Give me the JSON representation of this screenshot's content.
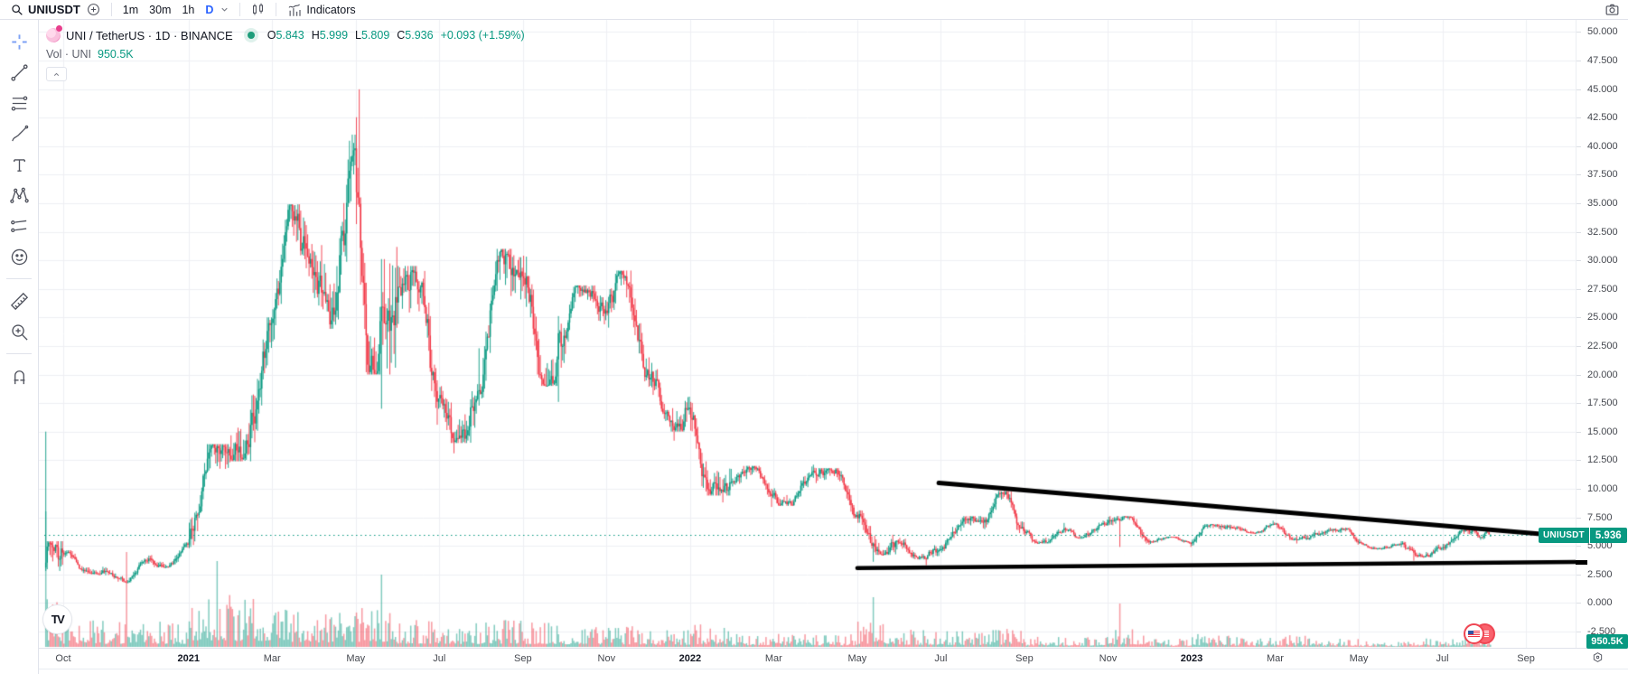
{
  "topbar": {
    "symbol": "UNIUSDT",
    "intervals": [
      "1m",
      "30m",
      "1h",
      "D"
    ],
    "active_interval": "D",
    "indicators_label": "Indicators"
  },
  "left_toolbar": {
    "tools": [
      "crosshair",
      "trend-line",
      "fib-retracement",
      "brush",
      "text",
      "xabcd-pattern",
      "projection",
      "emoji",
      "|",
      "ruler",
      "zoom-in",
      "|",
      "magnet"
    ]
  },
  "legend": {
    "title": "UNI / TetherUS · 1D · BINANCE",
    "ohlc": {
      "o_label": "O",
      "o_value": "5.843",
      "h_label": "H",
      "h_value": "5.999",
      "l_label": "L",
      "l_value": "5.809",
      "c_label": "C",
      "c_value": "5.936",
      "change": "+0.093 (+1.59%)"
    },
    "volume_label": "Vol · UNI",
    "volume_value": "950.5K"
  },
  "price_label": {
    "symbol": "UNIUSDT",
    "value": "5.936"
  },
  "volume_badge": {
    "value": "950.5K"
  },
  "price_axis": {
    "labels": [
      "50.000",
      "47.500",
      "45.000",
      "42.500",
      "40.000",
      "37.500",
      "35.000",
      "32.500",
      "30.000",
      "27.500",
      "25.000",
      "22.500",
      "20.000",
      "17.500",
      "15.000",
      "12.500",
      "10.000",
      "7.500",
      "5.000",
      "2.500",
      "0.000",
      "-2.500"
    ]
  },
  "time_axis": {
    "labels": [
      {
        "text": "Oct",
        "t": 1
      },
      {
        "text": "2021",
        "t": 4,
        "year": true
      },
      {
        "text": "Mar",
        "t": 6
      },
      {
        "text": "May",
        "t": 8
      },
      {
        "text": "Jul",
        "t": 10
      },
      {
        "text": "Sep",
        "t": 12
      },
      {
        "text": "Nov",
        "t": 14
      },
      {
        "text": "2022",
        "t": 16,
        "year": true
      },
      {
        "text": "Mar",
        "t": 18
      },
      {
        "text": "May",
        "t": 20
      },
      {
        "text": "Jul",
        "t": 22
      },
      {
        "text": "Sep",
        "t": 24
      },
      {
        "text": "Nov",
        "t": 26
      },
      {
        "text": "2023",
        "t": 28,
        "year": true
      },
      {
        "text": "Mar",
        "t": 30
      },
      {
        "text": "May",
        "t": 32
      },
      {
        "text": "Jul",
        "t": 34
      },
      {
        "text": "Sep",
        "t": 36
      }
    ]
  },
  "colors": {
    "up": "#089981",
    "down": "#f23645",
    "vol_up": "rgba(8,153,129,0.5)",
    "vol_down": "rgba(242,54,69,0.5)",
    "grid": "#eef0f4",
    "accent_blue": "#2962ff",
    "trend_line": "#000000",
    "badge_bg": "#089981"
  },
  "chart_data": {
    "type": "candlestick",
    "symbol": "UNIUSDT",
    "description": "UNI / TetherUS",
    "interval": "1D",
    "exchange": "BINANCE",
    "last": {
      "open": 5.843,
      "high": 5.999,
      "low": 5.809,
      "close": 5.936,
      "change": "+0.093",
      "change_pct": "+1.59%"
    },
    "current_price": 5.936,
    "volume_display": "950.5K",
    "ylim": [
      -2.5,
      50
    ],
    "x_range": [
      "2020-09",
      "2023-09"
    ],
    "grid": true,
    "months": [
      {
        "m": "2020-09",
        "o": 3.1,
        "h": 15.0,
        "l": 2.8,
        "c": 4.4,
        "v": 55,
        "days": 13,
        "sf": 0.567,
        "cap": 5.4,
        "hd": 0,
        "vd": 0,
        "vmax": 150
      },
      {
        "m": "2020-10",
        "o": 4.4,
        "h": 4.6,
        "l": 2.5,
        "c": 2.7,
        "v": 30
      },
      {
        "m": "2020-11",
        "o": 2.7,
        "h": 3.9,
        "l": 1.8,
        "c": 3.7,
        "v": 28,
        "vd": 15,
        "vmax": 105
      },
      {
        "m": "2020-12",
        "o": 3.7,
        "h": 5.3,
        "l": 3.1,
        "c": 5.1,
        "v": 28
      },
      {
        "m": "2021-01",
        "o": 5.1,
        "h": 13.9,
        "l": 4.8,
        "c": 12.9,
        "v": 60,
        "vd": 20,
        "vmax": 95
      },
      {
        "m": "2021-02",
        "o": 12.9,
        "h": 25.0,
        "l": 12.4,
        "c": 24.5,
        "v": 55
      },
      {
        "m": "2021-03",
        "o": 24.5,
        "h": 34.9,
        "l": 22.9,
        "c": 28.7,
        "v": 45
      },
      {
        "m": "2021-04",
        "o": 28.7,
        "h": 41.0,
        "l": 24.0,
        "c": 39.8,
        "v": 40
      },
      {
        "m": "2021-05",
        "o": 39.8,
        "h": 44.97,
        "l": 17.0,
        "c": 26.3,
        "v": 45,
        "floor": 20,
        "hd": 2,
        "ld": 18,
        "vd": 18,
        "vmax": 80
      },
      {
        "m": "2021-06",
        "o": 26.3,
        "h": 29.5,
        "l": 15.6,
        "c": 17.9,
        "v": 30,
        "floor": 17
      },
      {
        "m": "2021-07",
        "o": 17.9,
        "h": 22.3,
        "l": 13.1,
        "c": 18.3,
        "v": 27,
        "floor": 14
      },
      {
        "m": "2021-08",
        "o": 18.3,
        "h": 31.0,
        "l": 17.9,
        "c": 28.6,
        "v": 30
      },
      {
        "m": "2021-09",
        "o": 28.6,
        "h": 30.4,
        "l": 17.6,
        "c": 23.4,
        "v": 27,
        "floor": 19,
        "ld": 25
      },
      {
        "m": "2021-10",
        "o": 23.4,
        "h": 27.8,
        "l": 21.8,
        "c": 25.6,
        "v": 23
      },
      {
        "m": "2021-11",
        "o": 25.6,
        "h": 29.1,
        "l": 19.4,
        "c": 20.4,
        "v": 23
      },
      {
        "m": "2021-12",
        "o": 20.4,
        "h": 21.5,
        "l": 14.2,
        "c": 17.1,
        "v": 19,
        "floor": 15
      },
      {
        "m": "2022-01",
        "o": 17.1,
        "h": 17.6,
        "l": 8.8,
        "c": 10.6,
        "v": 25,
        "floor": 9.4,
        "ld": 23
      },
      {
        "m": "2022-02",
        "o": 10.6,
        "h": 12.0,
        "l": 8.4,
        "c": 9.4,
        "v": 15
      },
      {
        "m": "2022-03",
        "o": 9.4,
        "h": 12.1,
        "l": 8.5,
        "c": 11.4,
        "v": 15
      },
      {
        "m": "2022-04",
        "o": 11.4,
        "h": 11.8,
        "l": 7.4,
        "c": 7.7,
        "v": 14
      },
      {
        "m": "2022-05",
        "o": 7.7,
        "h": 8.1,
        "l": 3.6,
        "c": 5.3,
        "v": 28,
        "floor": 4.2,
        "ld": 11,
        "vd": 11,
        "vmax": 55
      },
      {
        "m": "2022-06",
        "o": 5.3,
        "h": 5.7,
        "l": 3.3,
        "c": 4.7,
        "v": 20,
        "floor": 3.8
      },
      {
        "m": "2022-07",
        "o": 4.7,
        "h": 7.6,
        "l": 4.4,
        "c": 7.1,
        "v": 18
      },
      {
        "m": "2022-08",
        "o": 7.1,
        "h": 9.8,
        "l": 6.0,
        "c": 6.3,
        "v": 20
      },
      {
        "m": "2022-09",
        "o": 6.3,
        "h": 7.0,
        "l": 5.2,
        "c": 6.4,
        "v": 12
      },
      {
        "m": "2022-10",
        "o": 6.4,
        "h": 7.3,
        "l": 5.7,
        "c": 7.0,
        "v": 12
      },
      {
        "m": "2022-11",
        "o": 7.0,
        "h": 7.6,
        "l": 4.9,
        "c": 5.3,
        "v": 22,
        "floor": 5.1,
        "ld": 8,
        "vd": 8,
        "vmax": 48
      },
      {
        "m": "2022-12",
        "o": 5.3,
        "h": 5.8,
        "l": 4.9,
        "c": 5.2,
        "v": 9
      },
      {
        "m": "2023-01",
        "o": 5.2,
        "h": 6.9,
        "l": 5.0,
        "c": 6.6,
        "v": 15
      },
      {
        "m": "2023-02",
        "o": 6.6,
        "h": 7.2,
        "l": 6.1,
        "c": 6.9,
        "v": 11
      },
      {
        "m": "2023-03",
        "o": 6.9,
        "h": 7.0,
        "l": 5.2,
        "c": 6.0,
        "v": 13,
        "floor": 5.5
      },
      {
        "m": "2023-04",
        "o": 6.0,
        "h": 6.6,
        "l": 5.1,
        "c": 5.3,
        "v": 9
      },
      {
        "m": "2023-05",
        "o": 5.3,
        "h": 5.6,
        "l": 4.7,
        "c": 5.1,
        "v": 7
      },
      {
        "m": "2023-06",
        "o": 5.1,
        "h": 5.4,
        "l": 3.7,
        "c": 4.8,
        "v": 11,
        "floor": 4.0,
        "ld": 9
      },
      {
        "m": "2023-07",
        "o": 4.8,
        "h": 6.5,
        "l": 4.6,
        "c": 5.9,
        "v": 11
      },
      {
        "m": "2023-08",
        "o": 5.9,
        "h": 6.3,
        "l": 5.65,
        "c": 5.936,
        "v": 7,
        "days": 5
      }
    ],
    "trend_lines": [
      {
        "name": "descending-resistance",
        "t1": 21.95,
        "p1": 10.5,
        "t2": 36.35,
        "p2": 6.03,
        "width": 5
      },
      {
        "name": "support",
        "t1": 20.0,
        "p1": 3.05,
        "t2": 37.2,
        "p2": 3.58,
        "width": 4.5
      }
    ]
  }
}
